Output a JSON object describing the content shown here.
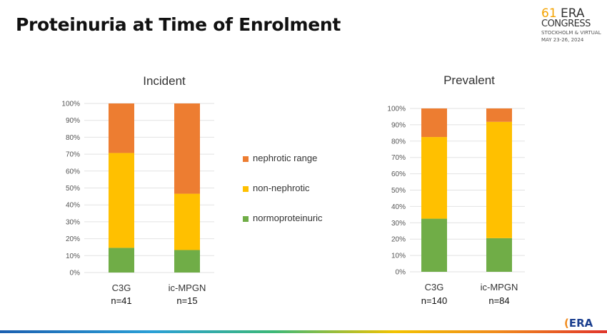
{
  "slide": {
    "title": "Proteinuria at Time of Enrolment"
  },
  "logo": {
    "number": "61",
    "line1": "ERA",
    "line2": "CONGRESS",
    "line3": "STOCKHOLM & VIRTUAL",
    "line4": "MAY 23-26, 2024"
  },
  "footer_logo": {
    "mark": "(",
    "text": "ERA"
  },
  "colors": {
    "nephrotic_range": "#ed7d31",
    "non_nephrotic": "#ffc000",
    "normoproteinuric": "#70ad47"
  },
  "chart_data": [
    {
      "type": "bar",
      "stacked": true,
      "title": "Incident",
      "categories": [
        "C3G",
        "ic-MPGN"
      ],
      "category_n": [
        "n=41",
        "n=15"
      ],
      "y_ticks": [
        "0%",
        "10%",
        "20%",
        "30%",
        "40%",
        "50%",
        "60%",
        "70%",
        "80%",
        "90%",
        "100%"
      ],
      "ylim": [
        0,
        100
      ],
      "series": [
        {
          "name": "normoproteinuric",
          "values": [
            14.6,
            13.3
          ]
        },
        {
          "name": "non-nephrotic",
          "values": [
            56.1,
            33.3
          ]
        },
        {
          "name": "nephrotic range",
          "values": [
            29.3,
            53.4
          ]
        }
      ]
    },
    {
      "type": "bar",
      "stacked": true,
      "title": "Prevalent",
      "categories": [
        "C3G",
        "ic-MPGN"
      ],
      "category_n": [
        "n=140",
        "n=84"
      ],
      "y_ticks": [
        "0%",
        "10%",
        "20%",
        "30%",
        "40%",
        "50%",
        "60%",
        "70%",
        "80%",
        "90%",
        "100%"
      ],
      "ylim": [
        0,
        100
      ],
      "series": [
        {
          "name": "normoproteinuric",
          "values": [
            32.5,
            20.6
          ]
        },
        {
          "name": "non-nephrotic",
          "values": [
            50,
            71.2
          ]
        },
        {
          "name": "nephrotic range",
          "values": [
            17.5,
            8.2
          ]
        }
      ]
    }
  ],
  "legend": {
    "placement": "center",
    "items": [
      {
        "label": "nephrotic range",
        "color": "#ed7d31"
      },
      {
        "label": "non-nephrotic",
        "color": "#ffc000"
      },
      {
        "label": "normoproteinuric",
        "color": "#70ad47"
      }
    ]
  }
}
